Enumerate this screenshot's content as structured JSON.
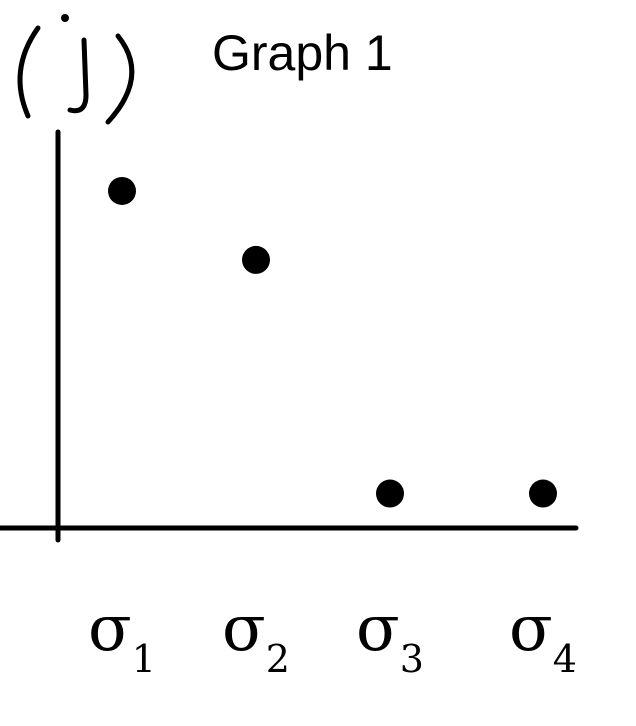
{
  "chart_data": {
    "type": "scatter",
    "title": "Graph 1",
    "ylabel": "(j)",
    "xlabel": "",
    "categories": [
      "σ1",
      "σ2",
      "σ3",
      "σ4"
    ],
    "category_labels": [
      {
        "base": "σ",
        "sub": "1"
      },
      {
        "base": "σ",
        "sub": "2"
      },
      {
        "base": "σ",
        "sub": "3"
      },
      {
        "base": "σ",
        "sub": "4"
      }
    ],
    "values": [
      0.88,
      0.7,
      0.09,
      0.09
    ],
    "ylim": [
      0,
      1
    ],
    "grid": false,
    "legend": "none",
    "point_color": "#000000",
    "axis_color": "#000000"
  }
}
